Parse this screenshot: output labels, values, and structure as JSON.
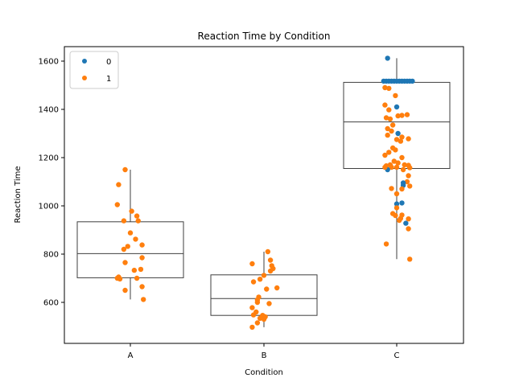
{
  "chart_data": {
    "type": "box_with_strip",
    "title": "Reaction Time by Condition",
    "xlabel": "Condition",
    "ylabel": "Reaction Time",
    "categories": [
      "A",
      "B",
      "C"
    ],
    "ylim": [
      430,
      1660
    ],
    "yticks": [
      600,
      800,
      1000,
      1200,
      1400,
      1600
    ],
    "grid": false,
    "legend": {
      "title": "",
      "placement": "top-left",
      "entries": [
        "0",
        "1"
      ]
    },
    "colors": {
      "0": "#1f77b4",
      "1": "#ff7f0e",
      "box_line": "#3f3f3f",
      "axes": "#000000"
    },
    "boxes": [
      {
        "category": "A",
        "whisker_low": 612,
        "q1": 702,
        "median": 802,
        "q3": 934,
        "whisker_high": 1150
      },
      {
        "category": "B",
        "whisker_low": 497,
        "q1": 546,
        "median": 616,
        "q3": 714,
        "whisker_high": 810
      },
      {
        "category": "C",
        "whisker_low": 779,
        "q1": 1155,
        "median": 1348,
        "q3": 1512,
        "whisker_high": 1612
      }
    ],
    "points": [
      {
        "c": 0,
        "x": -0.04,
        "y": 1150,
        "g": 1
      },
      {
        "c": 0,
        "x": -0.09,
        "y": 1088,
        "g": 1
      },
      {
        "c": 0,
        "x": -0.1,
        "y": 1005,
        "g": 1
      },
      {
        "c": 0,
        "x": 0.01,
        "y": 978,
        "g": 1
      },
      {
        "c": 0,
        "x": 0.05,
        "y": 958,
        "g": 1
      },
      {
        "c": 0,
        "x": -0.05,
        "y": 938,
        "g": 1
      },
      {
        "c": 0,
        "x": 0.06,
        "y": 938,
        "g": 1
      },
      {
        "c": 0,
        "x": 0.0,
        "y": 888,
        "g": 1
      },
      {
        "c": 0,
        "x": 0.04,
        "y": 862,
        "g": 1
      },
      {
        "c": 0,
        "x": 0.09,
        "y": 838,
        "g": 1
      },
      {
        "c": 0,
        "x": -0.02,
        "y": 832,
        "g": 1
      },
      {
        "c": 0,
        "x": -0.05,
        "y": 820,
        "g": 1
      },
      {
        "c": 0,
        "x": 0.09,
        "y": 785,
        "g": 1
      },
      {
        "c": 0,
        "x": -0.04,
        "y": 765,
        "g": 1
      },
      {
        "c": 0,
        "x": 0.03,
        "y": 733,
        "g": 1
      },
      {
        "c": 0,
        "x": 0.08,
        "y": 737,
        "g": 1
      },
      {
        "c": 0,
        "x": -0.09,
        "y": 705,
        "g": 1
      },
      {
        "c": 0,
        "x": -0.1,
        "y": 700,
        "g": 1
      },
      {
        "c": 0,
        "x": 0.05,
        "y": 700,
        "g": 1
      },
      {
        "c": 0,
        "x": -0.08,
        "y": 697,
        "g": 1
      },
      {
        "c": 0,
        "x": 0.09,
        "y": 665,
        "g": 1
      },
      {
        "c": 0,
        "x": -0.04,
        "y": 650,
        "g": 1
      },
      {
        "c": 0,
        "x": 0.1,
        "y": 612,
        "g": 1
      },
      {
        "c": 1,
        "x": 0.03,
        "y": 810,
        "g": 1
      },
      {
        "c": 1,
        "x": 0.05,
        "y": 775,
        "g": 1
      },
      {
        "c": 1,
        "x": -0.09,
        "y": 760,
        "g": 1
      },
      {
        "c": 1,
        "x": 0.06,
        "y": 752,
        "g": 1
      },
      {
        "c": 1,
        "x": 0.07,
        "y": 740,
        "g": 1
      },
      {
        "c": 1,
        "x": 0.05,
        "y": 730,
        "g": 1
      },
      {
        "c": 1,
        "x": 0.0,
        "y": 712,
        "g": 1
      },
      {
        "c": 1,
        "x": -0.03,
        "y": 696,
        "g": 1
      },
      {
        "c": 1,
        "x": -0.08,
        "y": 685,
        "g": 1
      },
      {
        "c": 1,
        "x": 0.1,
        "y": 660,
        "g": 1
      },
      {
        "c": 1,
        "x": 0.02,
        "y": 655,
        "g": 1
      },
      {
        "c": 1,
        "x": -0.04,
        "y": 622,
        "g": 1
      },
      {
        "c": 1,
        "x": -0.05,
        "y": 610,
        "g": 1
      },
      {
        "c": 1,
        "x": -0.05,
        "y": 600,
        "g": 1
      },
      {
        "c": 1,
        "x": 0.04,
        "y": 595,
        "g": 1
      },
      {
        "c": 1,
        "x": -0.09,
        "y": 578,
        "g": 1
      },
      {
        "c": 1,
        "x": -0.06,
        "y": 560,
        "g": 1
      },
      {
        "c": 1,
        "x": -0.08,
        "y": 548,
        "g": 1
      },
      {
        "c": 1,
        "x": -0.01,
        "y": 546,
        "g": 1
      },
      {
        "c": 1,
        "x": 0.01,
        "y": 540,
        "g": 1
      },
      {
        "c": 1,
        "x": -0.03,
        "y": 534,
        "g": 1
      },
      {
        "c": 1,
        "x": 0.0,
        "y": 530,
        "g": 1
      },
      {
        "c": 1,
        "x": -0.05,
        "y": 515,
        "g": 1
      },
      {
        "c": 1,
        "x": -0.09,
        "y": 497,
        "g": 1
      },
      {
        "c": 2,
        "x": -0.07,
        "y": 1612,
        "g": 0
      },
      {
        "c": 2,
        "x": -0.1,
        "y": 1517,
        "g": 0
      },
      {
        "c": 2,
        "x": -0.08,
        "y": 1517,
        "g": 0
      },
      {
        "c": 2,
        "x": -0.06,
        "y": 1517,
        "g": 0
      },
      {
        "c": 2,
        "x": -0.04,
        "y": 1517,
        "g": 0
      },
      {
        "c": 2,
        "x": -0.02,
        "y": 1517,
        "g": 0
      },
      {
        "c": 2,
        "x": 0.0,
        "y": 1517,
        "g": 0
      },
      {
        "c": 2,
        "x": 0.02,
        "y": 1517,
        "g": 0
      },
      {
        "c": 2,
        "x": 0.04,
        "y": 1517,
        "g": 0
      },
      {
        "c": 2,
        "x": 0.06,
        "y": 1517,
        "g": 0
      },
      {
        "c": 2,
        "x": 0.08,
        "y": 1517,
        "g": 0
      },
      {
        "c": 2,
        "x": 0.1,
        "y": 1517,
        "g": 0
      },
      {
        "c": 2,
        "x": 0.12,
        "y": 1517,
        "g": 0
      },
      {
        "c": 2,
        "x": -0.09,
        "y": 1490,
        "g": 1
      },
      {
        "c": 2,
        "x": -0.06,
        "y": 1487,
        "g": 1
      },
      {
        "c": 2,
        "x": -0.01,
        "y": 1457,
        "g": 1
      },
      {
        "c": 2,
        "x": -0.09,
        "y": 1418,
        "g": 1
      },
      {
        "c": 2,
        "x": 0.0,
        "y": 1410,
        "g": 0
      },
      {
        "c": 2,
        "x": -0.06,
        "y": 1398,
        "g": 1
      },
      {
        "c": 2,
        "x": 0.04,
        "y": 1375,
        "g": 1
      },
      {
        "c": 2,
        "x": 0.08,
        "y": 1378,
        "g": 1
      },
      {
        "c": 2,
        "x": 0.01,
        "y": 1373,
        "g": 1
      },
      {
        "c": 2,
        "x": -0.08,
        "y": 1365,
        "g": 1
      },
      {
        "c": 2,
        "x": -0.05,
        "y": 1360,
        "g": 1
      },
      {
        "c": 2,
        "x": -0.03,
        "y": 1335,
        "g": 1
      },
      {
        "c": 2,
        "x": -0.07,
        "y": 1320,
        "g": 1
      },
      {
        "c": 2,
        "x": -0.04,
        "y": 1310,
        "g": 1
      },
      {
        "c": 2,
        "x": 0.01,
        "y": 1300,
        "g": 0
      },
      {
        "c": 2,
        "x": -0.07,
        "y": 1293,
        "g": 1
      },
      {
        "c": 2,
        "x": 0.04,
        "y": 1285,
        "g": 1
      },
      {
        "c": 2,
        "x": 0.0,
        "y": 1275,
        "g": 1
      },
      {
        "c": 2,
        "x": 0.03,
        "y": 1268,
        "g": 1
      },
      {
        "c": 2,
        "x": 0.09,
        "y": 1278,
        "g": 1
      },
      {
        "c": 2,
        "x": -0.03,
        "y": 1240,
        "g": 1
      },
      {
        "c": 2,
        "x": -0.01,
        "y": 1232,
        "g": 1
      },
      {
        "c": 2,
        "x": -0.06,
        "y": 1222,
        "g": 1
      },
      {
        "c": 2,
        "x": -0.09,
        "y": 1210,
        "g": 1
      },
      {
        "c": 2,
        "x": 0.04,
        "y": 1200,
        "g": 1
      },
      {
        "c": 2,
        "x": -0.02,
        "y": 1185,
        "g": 1
      },
      {
        "c": 2,
        "x": 0.01,
        "y": 1178,
        "g": 1
      },
      {
        "c": 2,
        "x": -0.05,
        "y": 1170,
        "g": 1
      },
      {
        "c": 2,
        "x": -0.08,
        "y": 1166,
        "g": 1
      },
      {
        "c": 2,
        "x": 0.06,
        "y": 1170,
        "g": 1
      },
      {
        "c": 2,
        "x": 0.09,
        "y": 1168,
        "g": 1
      },
      {
        "c": 2,
        "x": -0.04,
        "y": 1160,
        "g": 1
      },
      {
        "c": 2,
        "x": 0.0,
        "y": 1160,
        "g": 1
      },
      {
        "c": 2,
        "x": 0.1,
        "y": 1158,
        "g": 1
      },
      {
        "c": 2,
        "x": -0.07,
        "y": 1150,
        "g": 0
      },
      {
        "c": 2,
        "x": 0.05,
        "y": 1150,
        "g": 1
      },
      {
        "c": 2,
        "x": 0.09,
        "y": 1125,
        "g": 1
      },
      {
        "c": 2,
        "x": -0.09,
        "y": 1160,
        "g": 1
      },
      {
        "c": 2,
        "x": 0.08,
        "y": 1100,
        "g": 1
      },
      {
        "c": 2,
        "x": 0.05,
        "y": 1095,
        "g": 0
      },
      {
        "c": 2,
        "x": 0.05,
        "y": 1085,
        "g": 0
      },
      {
        "c": 2,
        "x": 0.1,
        "y": 1082,
        "g": 1
      },
      {
        "c": 2,
        "x": -0.04,
        "y": 1072,
        "g": 1
      },
      {
        "c": 2,
        "x": 0.04,
        "y": 1070,
        "g": 1
      },
      {
        "c": 2,
        "x": 0.0,
        "y": 1050,
        "g": 1
      },
      {
        "c": 2,
        "x": 0.04,
        "y": 1012,
        "g": 0
      },
      {
        "c": 2,
        "x": 0.0,
        "y": 1008,
        "g": 0
      },
      {
        "c": 2,
        "x": 0.0,
        "y": 992,
        "g": 1
      },
      {
        "c": 2,
        "x": -0.03,
        "y": 968,
        "g": 1
      },
      {
        "c": 2,
        "x": -0.01,
        "y": 960,
        "g": 1
      },
      {
        "c": 2,
        "x": 0.04,
        "y": 962,
        "g": 1
      },
      {
        "c": 2,
        "x": 0.03,
        "y": 948,
        "g": 1
      },
      {
        "c": 2,
        "x": 0.09,
        "y": 946,
        "g": 1
      },
      {
        "c": 2,
        "x": 0.02,
        "y": 940,
        "g": 1
      },
      {
        "c": 2,
        "x": 0.07,
        "y": 928,
        "g": 0
      },
      {
        "c": 2,
        "x": 0.09,
        "y": 905,
        "g": 1
      },
      {
        "c": 2,
        "x": -0.08,
        "y": 842,
        "g": 1
      },
      {
        "c": 2,
        "x": 0.1,
        "y": 779,
        "g": 1
      }
    ]
  }
}
